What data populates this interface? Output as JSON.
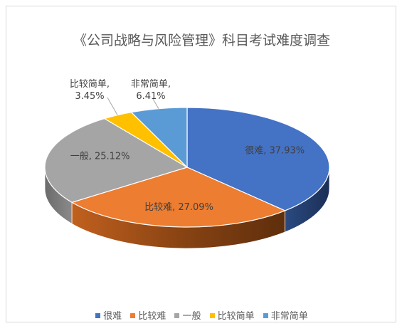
{
  "chart_data": {
    "type": "pie",
    "title": "《公司战略与风险管理》科目考试难度调查",
    "categories": [
      "很难",
      "比较难",
      "一般",
      "比较简单",
      "非常简单"
    ],
    "values": [
      37.93,
      27.09,
      25.12,
      3.45,
      6.41
    ],
    "value_labels": [
      "37.93%",
      "27.09%",
      "25.12%",
      "3.45%",
      "6.41%"
    ],
    "colors": [
      "#4472C4",
      "#ED7D31",
      "#A5A5A5",
      "#FFC000",
      "#5B9BD5"
    ],
    "legend_position": "bottom",
    "three_d": true
  }
}
